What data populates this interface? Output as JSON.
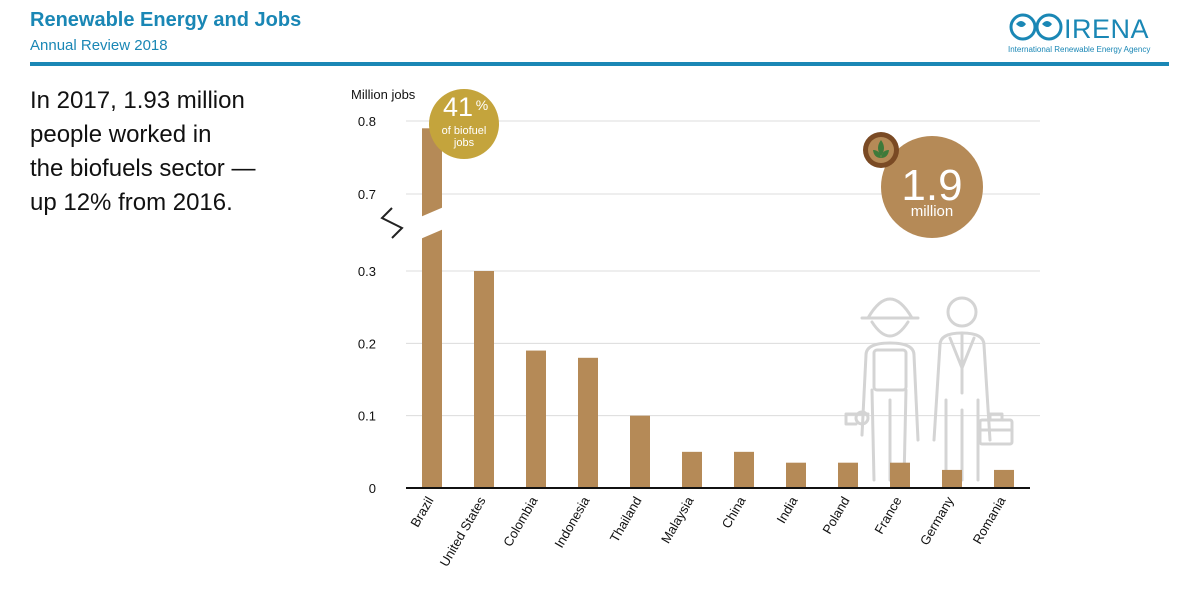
{
  "header": {
    "title": "Renewable Energy and Jobs",
    "subtitle": "Annual Review 2018",
    "logo_text": "IRENA",
    "logo_tagline": "International Renewable Energy Agency"
  },
  "headline": [
    "In 2017, 1.93 million",
    "people worked in",
    "the biofuels sector —",
    "up 12% from 2016."
  ],
  "badges": {
    "share_value": "41",
    "share_unit": "%",
    "share_line1": "of biofuel",
    "share_line2": "jobs",
    "total_value": "1.9",
    "total_unit": "million"
  },
  "icons": [
    "biofuel-leaf-icon",
    "worker-hardhat-icon",
    "worker-briefcase-icon"
  ],
  "colors": {
    "bar": "#b58a57",
    "accent": "#1a87b5",
    "badge_gold": "#c4a43c"
  },
  "chart_data": {
    "type": "bar",
    "title": "",
    "ylabel": "Million jobs",
    "xlabel": "",
    "categories": [
      "Brazil",
      "United States",
      "Colombia",
      "Indonesia",
      "Thailand",
      "Malaysia",
      "China",
      "India",
      "Poland",
      "France",
      "Germany",
      "Romania"
    ],
    "values": [
      0.79,
      0.3,
      0.19,
      0.18,
      0.1,
      0.05,
      0.05,
      0.035,
      0.035,
      0.035,
      0.025,
      0.025
    ],
    "yticks": [
      "0",
      "0.1",
      "0.2",
      "0.3",
      "0.7",
      "0.8"
    ],
    "ylim": [
      0,
      0.8
    ],
    "axis_break": [
      0.3,
      0.7
    ],
    "grid": true
  }
}
